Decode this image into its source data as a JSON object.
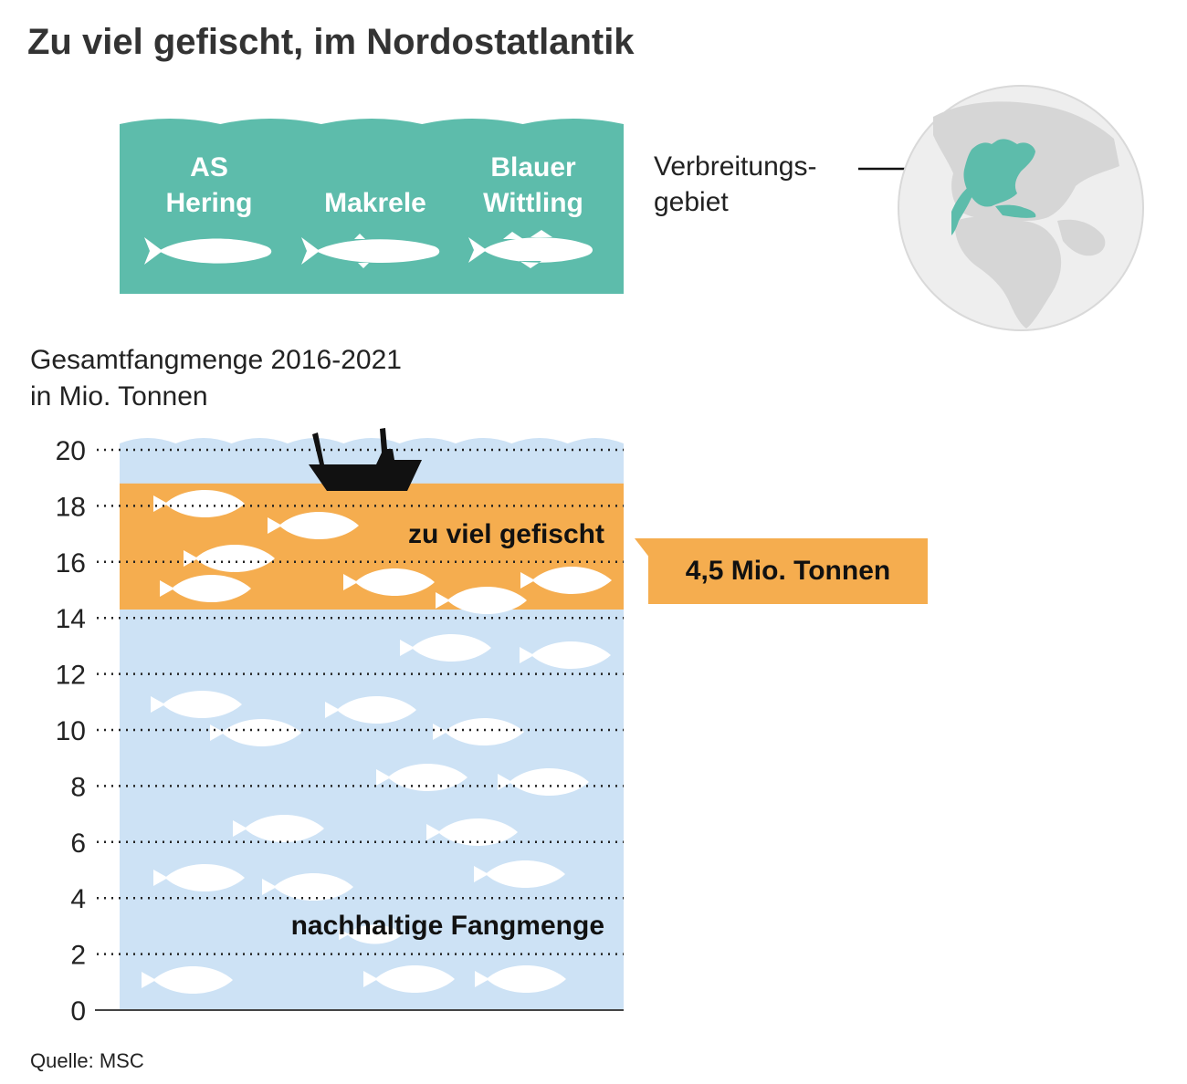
{
  "title": "Zu viel gefischt, im Nordostatlantik",
  "species": [
    {
      "label_line1": "AS",
      "label_line2": "Hering",
      "icon": "herring-icon"
    },
    {
      "label_line1": "",
      "label_line2": "Makrele",
      "icon": "mackerel-icon"
    },
    {
      "label_line1": "Blauer",
      "label_line2": "Wittling",
      "icon": "blue-whiting-icon"
    }
  ],
  "range": {
    "line1": "Verbreitungs-",
    "line2": "gebiet",
    "icon": "globe-icon"
  },
  "chart_data": {
    "type": "bar",
    "ylabel_line1": "Gesamtfangmenge 2016-2021",
    "ylabel_line2": "in Mio. Tonnen",
    "ylim": [
      0,
      20
    ],
    "yticks": [
      "0",
      "2",
      "4",
      "6",
      "8",
      "10",
      "12",
      "14",
      "16",
      "18",
      "20"
    ],
    "grid": true,
    "series": [
      {
        "name": "nachhaltige Fangmenge",
        "values": [
          14.3
        ],
        "color": "#cde2f5"
      },
      {
        "name": "zu viel gefischt",
        "values": [
          4.5
        ],
        "color": "#f5ad4f"
      }
    ],
    "total": 18.8,
    "annotation": "4,5 Mio. Tonnen"
  },
  "colors": {
    "teal": "#5dbcab",
    "water": "#cde2f5",
    "orange": "#f5ad4f",
    "globe_land": "#d6d6d6",
    "globe_sea": "#eeeeee"
  },
  "source": "Quelle: MSC"
}
